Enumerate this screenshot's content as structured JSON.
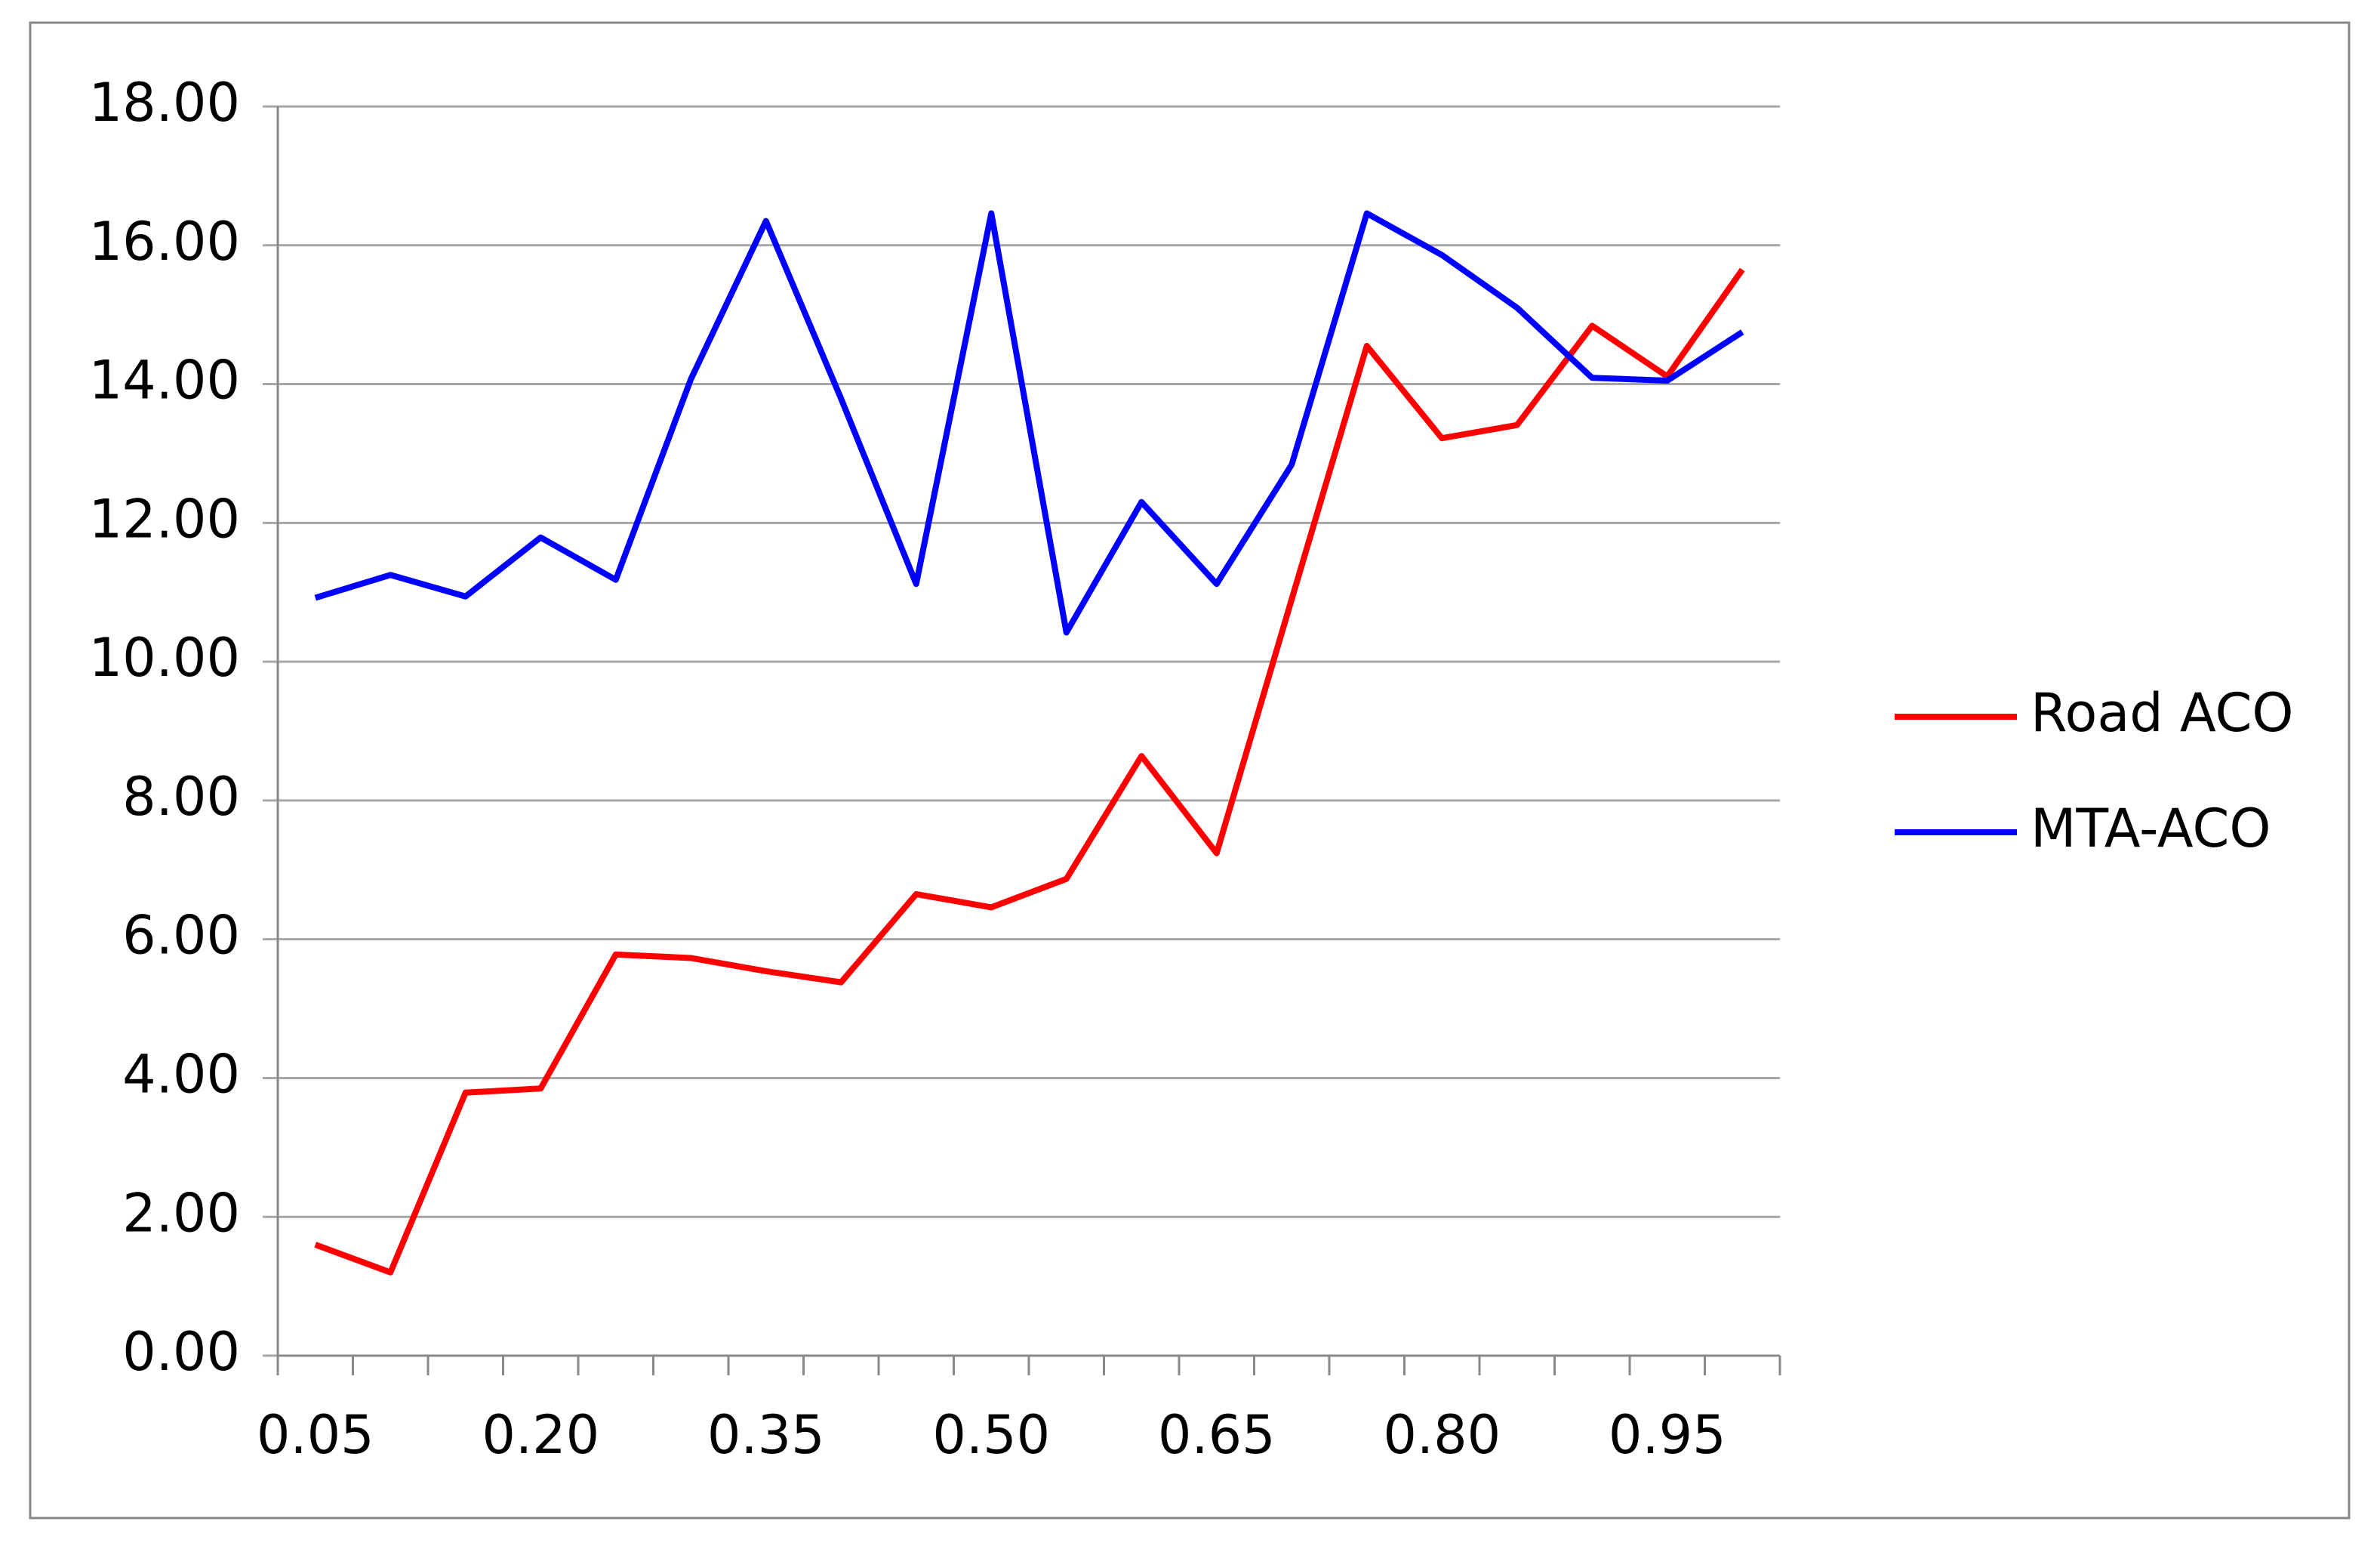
{
  "chart_data": {
    "type": "line",
    "categories": [
      "0.05",
      null,
      null,
      "0.20",
      null,
      null,
      "0.35",
      null,
      null,
      "0.50",
      null,
      null,
      "0.65",
      null,
      null,
      "0.80",
      null,
      null,
      "0.95",
      null
    ],
    "series": [
      {
        "name": "Road ACO",
        "color": "#ff0000",
        "values": [
          1.6,
          1.2,
          3.79,
          3.85,
          5.78,
          5.73,
          5.54,
          5.38,
          6.65,
          6.46,
          6.87,
          8.64,
          7.24,
          10.9,
          14.55,
          13.22,
          13.41,
          14.84,
          14.11,
          15.65
        ]
      },
      {
        "name": "MTA-ACO",
        "color": "#0000ff",
        "values": [
          10.92,
          11.25,
          10.94,
          11.79,
          11.18,
          14.07,
          16.35,
          13.79,
          11.12,
          16.46,
          10.42,
          12.3,
          11.12,
          12.84,
          16.46,
          15.86,
          15.1,
          14.09,
          14.05,
          14.75
        ]
      }
    ],
    "ylim": [
      0,
      18
    ],
    "yticks": [
      {
        "value": 0,
        "label": "0.00"
      },
      {
        "value": 2,
        "label": "2.00"
      },
      {
        "value": 4,
        "label": "4.00"
      },
      {
        "value": 6,
        "label": "6.00"
      },
      {
        "value": 8,
        "label": "8.00"
      },
      {
        "value": 10,
        "label": "10.00"
      },
      {
        "value": 12,
        "label": "12.00"
      },
      {
        "value": 14,
        "label": "14.00"
      },
      {
        "value": 16,
        "label": "16.00"
      },
      {
        "value": 18,
        "label": "18.00"
      }
    ],
    "grid": true,
    "legend": "right"
  }
}
